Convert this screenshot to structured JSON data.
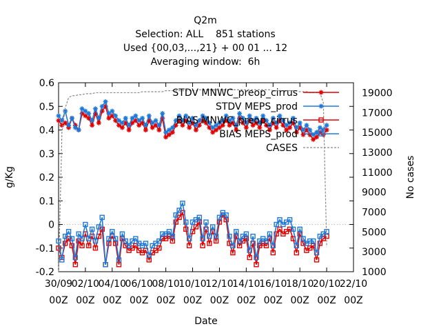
{
  "chart_data": {
    "type": "line",
    "title_lines": [
      "Q2m",
      "Selection: ALL    851 stations",
      "Used {00,03,...,21} + 00 01 ... 12",
      "Averaging window:  6h"
    ],
    "xlabel": "Date",
    "ylabel": "g/Kg",
    "y2label": "No cases",
    "ylim": [
      -0.2,
      0.6
    ],
    "y2lim": [
      1000,
      20000
    ],
    "yticks": [
      "0.6",
      "0.5",
      "0.4",
      "0.3",
      "0.2",
      "0.1",
      "0",
      "-0.1",
      "-0.2"
    ],
    "y2ticks": [
      "19000",
      "17000",
      "15000",
      "13000",
      "11000",
      "9000",
      "7000",
      "5000",
      "3000",
      "1000"
    ],
    "xticks": [
      {
        "date": "30/09",
        "hour": "00Z"
      },
      {
        "date": "02/10",
        "hour": "00Z"
      },
      {
        "date": "04/10",
        "hour": "00Z"
      },
      {
        "date": "06/10",
        "hour": "00Z"
      },
      {
        "date": "08/10",
        "hour": "00Z"
      },
      {
        "date": "10/10",
        "hour": "00Z"
      },
      {
        "date": "12/10",
        "hour": "00Z"
      },
      {
        "date": "14/10",
        "hour": "00Z"
      },
      {
        "date": "16/10",
        "hour": "00Z"
      },
      {
        "date": "18/10",
        "hour": "00Z"
      },
      {
        "date": "20/10",
        "hour": "00Z"
      },
      {
        "date": "22/10",
        "hour": "00Z"
      }
    ],
    "legend_position": "top-right",
    "series": [
      {
        "name": "STDV MNWC_preop_cirrus",
        "color": "#e00000",
        "marker": "star",
        "axis": "y",
        "values": [
          0.44,
          0.42,
          0.43,
          0.41,
          0.45,
          0.42,
          0.4,
          0.47,
          0.46,
          0.45,
          0.42,
          0.47,
          0.43,
          0.48,
          0.5,
          0.45,
          0.46,
          0.44,
          0.42,
          0.41,
          0.43,
          0.4,
          0.43,
          0.44,
          0.42,
          0.43,
          0.4,
          0.44,
          0.41,
          0.42,
          0.4,
          0.45,
          0.37,
          0.38,
          0.39,
          0.42,
          0.44,
          0.42,
          0.44,
          0.41,
          0.43,
          0.4,
          0.42,
          0.44,
          0.43,
          0.41,
          0.39,
          0.4,
          0.41,
          0.42,
          0.44,
          0.42,
          0.43,
          0.4,
          0.45,
          0.43,
          0.41,
          0.44,
          0.42,
          0.43,
          0.41,
          0.44,
          0.42,
          0.4,
          0.43,
          0.41,
          0.44,
          0.42,
          0.4,
          0.41,
          0.43,
          0.39,
          0.41,
          0.38,
          0.4,
          0.38,
          0.36,
          0.37,
          0.39,
          0.38,
          0.4
        ]
      },
      {
        "name": "STDV MEPS_prod",
        "color": "#1e78d8",
        "marker": "star",
        "axis": "y",
        "values": [
          0.46,
          0.44,
          0.48,
          0.42,
          0.45,
          0.41,
          0.4,
          0.49,
          0.48,
          0.47,
          0.44,
          0.49,
          0.45,
          0.5,
          0.52,
          0.47,
          0.48,
          0.46,
          0.44,
          0.43,
          0.45,
          0.42,
          0.45,
          0.46,
          0.44,
          0.45,
          0.42,
          0.46,
          0.43,
          0.44,
          0.42,
          0.47,
          0.39,
          0.4,
          0.41,
          0.44,
          0.46,
          0.44,
          0.46,
          0.43,
          0.45,
          0.42,
          0.44,
          0.46,
          0.45,
          0.43,
          0.41,
          0.42,
          0.43,
          0.44,
          0.46,
          0.44,
          0.45,
          0.42,
          0.47,
          0.45,
          0.43,
          0.46,
          0.44,
          0.45,
          0.43,
          0.46,
          0.44,
          0.42,
          0.45,
          0.43,
          0.46,
          0.44,
          0.42,
          0.43,
          0.45,
          0.41,
          0.43,
          0.4,
          0.42,
          0.4,
          0.38,
          0.39,
          0.41,
          0.4,
          0.42
        ]
      },
      {
        "name": "BIAS MNWC_preop_cirrus",
        "color": "#e00000",
        "marker": "square",
        "axis": "y",
        "values": [
          -0.1,
          -0.14,
          -0.08,
          -0.06,
          -0.09,
          -0.17,
          -0.07,
          -0.09,
          -0.04,
          -0.09,
          -0.05,
          -0.1,
          -0.05,
          -0.02,
          -0.17,
          -0.08,
          -0.05,
          -0.08,
          -0.17,
          -0.06,
          -0.09,
          -0.11,
          -0.1,
          -0.09,
          -0.11,
          -0.12,
          -0.11,
          -0.15,
          -0.12,
          -0.11,
          -0.1,
          -0.06,
          -0.06,
          -0.05,
          -0.07,
          0.01,
          0.03,
          0.05,
          -0.02,
          -0.09,
          -0.03,
          -0.01,
          0.01,
          -0.09,
          -0.02,
          -0.08,
          -0.03,
          -0.07,
          0.01,
          0.04,
          0.02,
          -0.08,
          -0.12,
          -0.05,
          -0.09,
          -0.07,
          -0.06,
          -0.14,
          -0.08,
          -0.17,
          -0.09,
          -0.08,
          -0.09,
          -0.06,
          -0.12,
          -0.04,
          -0.02,
          -0.04,
          -0.03,
          -0.02,
          -0.06,
          -0.12,
          -0.04,
          -0.08,
          -0.11,
          -0.1,
          -0.09,
          -0.15,
          -0.08,
          -0.06,
          -0.05
        ]
      },
      {
        "name": "BIAS MEPS_prod",
        "color": "#1e78d8",
        "marker": "square",
        "axis": "y",
        "values": [
          -0.07,
          -0.15,
          -0.05,
          -0.03,
          -0.06,
          -0.14,
          -0.04,
          -0.06,
          0.0,
          -0.06,
          -0.02,
          -0.07,
          -0.01,
          0.03,
          -0.17,
          -0.06,
          -0.03,
          -0.06,
          -0.15,
          -0.04,
          -0.07,
          -0.09,
          -0.07,
          -0.06,
          -0.08,
          -0.09,
          -0.08,
          -0.13,
          -0.09,
          -0.08,
          -0.07,
          -0.04,
          -0.04,
          -0.03,
          -0.05,
          0.04,
          0.06,
          0.09,
          0.01,
          -0.06,
          0.01,
          0.02,
          0.03,
          -0.06,
          0.01,
          -0.05,
          -0.01,
          -0.05,
          0.03,
          0.05,
          0.04,
          -0.05,
          -0.09,
          -0.03,
          -0.07,
          -0.05,
          -0.04,
          -0.11,
          -0.05,
          -0.14,
          -0.07,
          -0.06,
          -0.07,
          -0.04,
          -0.09,
          0.0,
          0.02,
          0.0,
          0.01,
          0.02,
          -0.02,
          -0.09,
          -0.02,
          -0.06,
          -0.08,
          -0.07,
          -0.07,
          -0.12,
          -0.05,
          -0.04,
          -0.03
        ]
      },
      {
        "name": "CASES",
        "color": "#888888",
        "marker": "none",
        "axis": "y2",
        "values": [
          1000,
          15000,
          17500,
          18500,
          18700,
          18700,
          18800,
          18800,
          18900,
          18900,
          18900,
          19000,
          19000,
          19000,
          19000,
          19000,
          19000,
          19000,
          19000,
          19000,
          19000,
          19000,
          19000,
          19000,
          19000,
          19100,
          19100,
          19100,
          19100,
          19100,
          19100,
          19100,
          19200,
          19200,
          19200,
          19200,
          19200,
          19200,
          19200,
          19200,
          19200,
          19200,
          19300,
          19300,
          19300,
          19300,
          19300,
          19300,
          19300,
          19300,
          19300,
          19300,
          19300,
          19300,
          19300,
          19300,
          19300,
          19300,
          19300,
          19300,
          19300,
          19300,
          19300,
          19300,
          19200,
          19200,
          19200,
          19200,
          19200,
          19200,
          19200,
          19200,
          19100,
          19100,
          19100,
          19000,
          19000,
          19000,
          19000,
          18000,
          3500
        ]
      }
    ]
  }
}
